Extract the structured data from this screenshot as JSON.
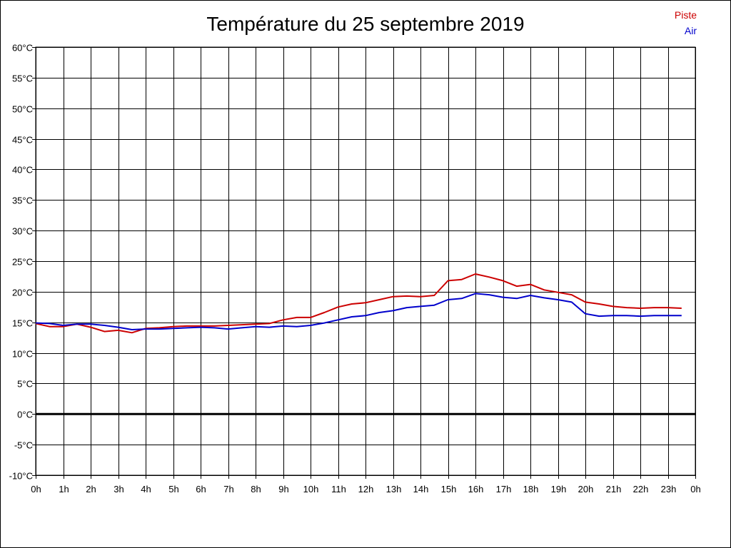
{
  "chart_data": {
    "type": "line",
    "title": "Température du 25 septembre 2019",
    "xlabel": "",
    "ylabel": "",
    "x_ticks": [
      "0h",
      "1h",
      "2h",
      "3h",
      "4h",
      "5h",
      "6h",
      "7h",
      "8h",
      "9h",
      "10h",
      "11h",
      "12h",
      "13h",
      "14h",
      "15h",
      "16h",
      "17h",
      "18h",
      "19h",
      "20h",
      "21h",
      "22h",
      "23h",
      "0h"
    ],
    "y_ticks": [
      "60°C",
      "55°C",
      "50°C",
      "45°C",
      "40°C",
      "35°C",
      "30°C",
      "25°C",
      "20°C",
      "15°C",
      "10°C",
      "5°C",
      "0°C",
      "-5°C",
      "-10°C"
    ],
    "xlim": [
      0,
      24
    ],
    "ylim": [
      -10,
      60
    ],
    "grid": true,
    "legend_position": "top-right",
    "series": [
      {
        "name": "Piste",
        "color": "#cc0000",
        "x": [
          0,
          0.5,
          1,
          1.5,
          2,
          2.5,
          3,
          3.5,
          4,
          4.5,
          5,
          5.5,
          6,
          6.5,
          7,
          7.5,
          8,
          8.5,
          9,
          9.5,
          10,
          10.5,
          11,
          11.5,
          12,
          12.5,
          13,
          13.5,
          14,
          14.5,
          15,
          15.5,
          16,
          16.5,
          17,
          17.5,
          18,
          18.5,
          19,
          19.5,
          20,
          20.5,
          21,
          21.5,
          22,
          22.5,
          23,
          23.5
        ],
        "values": [
          14.8,
          14.3,
          14.3,
          14.7,
          14.2,
          13.5,
          13.7,
          13.3,
          14.0,
          14.1,
          14.3,
          14.4,
          14.4,
          14.4,
          14.5,
          14.6,
          14.7,
          14.8,
          15.4,
          15.8,
          15.8,
          16.6,
          17.5,
          18.0,
          18.2,
          18.7,
          19.2,
          19.3,
          19.2,
          19.4,
          21.8,
          22.0,
          22.9,
          22.4,
          21.8,
          20.9,
          21.2,
          20.3,
          19.9,
          19.5,
          18.3,
          18.0,
          17.6,
          17.4,
          17.3,
          17.4,
          17.4,
          17.3
        ]
      },
      {
        "name": "Air",
        "color": "#0000cc",
        "x": [
          0,
          0.5,
          1,
          1.5,
          2,
          2.5,
          3,
          3.5,
          4,
          4.5,
          5,
          5.5,
          6,
          6.5,
          7,
          7.5,
          8,
          8.5,
          9,
          9.5,
          10,
          10.5,
          11,
          11.5,
          12,
          12.5,
          13,
          13.5,
          14,
          14.5,
          15,
          15.5,
          16,
          16.5,
          17,
          17.5,
          18,
          18.5,
          19,
          19.5,
          20,
          20.5,
          21,
          21.5,
          22,
          22.5,
          23,
          23.5
        ],
        "values": [
          14.9,
          14.8,
          14.5,
          14.7,
          14.7,
          14.5,
          14.2,
          13.8,
          13.9,
          13.9,
          14.0,
          14.1,
          14.2,
          14.1,
          13.9,
          14.1,
          14.3,
          14.2,
          14.4,
          14.3,
          14.5,
          14.9,
          15.4,
          15.9,
          16.1,
          16.6,
          16.9,
          17.4,
          17.6,
          17.8,
          18.7,
          18.9,
          19.7,
          19.5,
          19.1,
          18.9,
          19.4,
          19.0,
          18.7,
          18.3,
          16.4,
          16.0,
          16.1,
          16.1,
          16.0,
          16.1,
          16.1,
          16.1
        ]
      }
    ]
  }
}
